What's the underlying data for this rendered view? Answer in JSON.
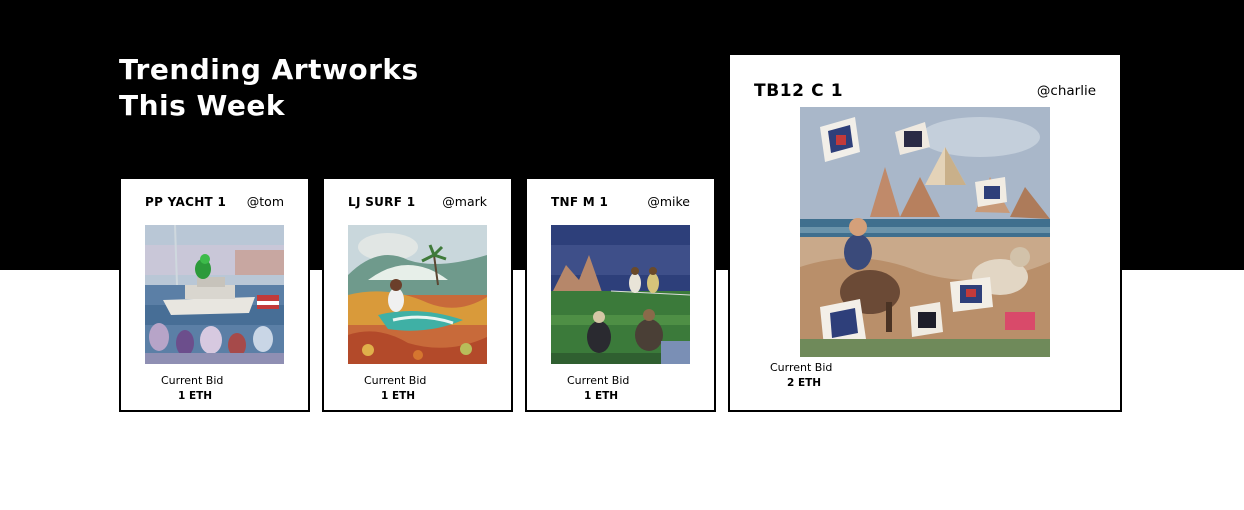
{
  "page": {
    "title_line1": "Trending Artworks",
    "title_line2": "This Week"
  },
  "cards": [
    {
      "title": "PP YACHT 1",
      "owner": "@tom",
      "bid_label": "Current Bid",
      "bid_value": "1 ETH",
      "art": "yacht painting"
    },
    {
      "title": "LJ SURF 1",
      "owner": "@mark",
      "bid_label": "Current Bid",
      "bid_value": "1 ETH",
      "art": "surf painting"
    },
    {
      "title": "TNF M 1",
      "owner": "@mike",
      "bid_label": "Current Bid",
      "bid_value": "1 ETH",
      "art": "field painting"
    },
    {
      "title": "TB12 C 1",
      "owner": "@charlie",
      "bid_label": "Current Bid",
      "bid_value": "2 ETH",
      "art": "desert painting"
    }
  ],
  "colors": {
    "background": "#ffffff",
    "hero_band": "#000000",
    "title_text": "#ffffff",
    "card_border": "#000000"
  }
}
